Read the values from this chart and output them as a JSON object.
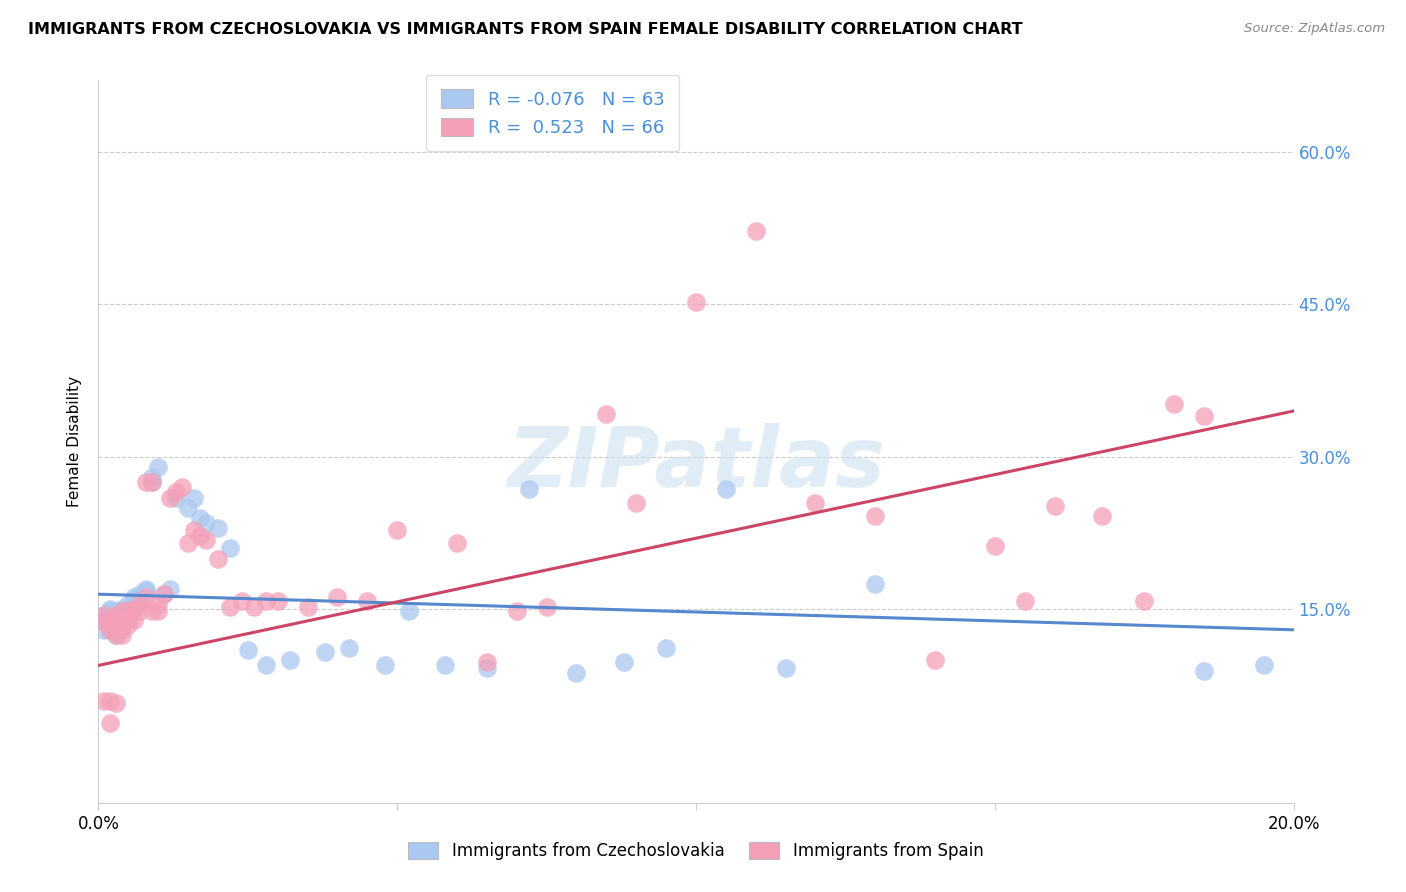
{
  "title": "IMMIGRANTS FROM CZECHOSLOVAKIA VS IMMIGRANTS FROM SPAIN FEMALE DISABILITY CORRELATION CHART",
  "source": "Source: ZipAtlas.com",
  "ylabel": "Female Disability",
  "xlim": [
    0.0,
    0.2
  ],
  "ylim": [
    -0.04,
    0.67
  ],
  "yticks": [
    0.15,
    0.3,
    0.45,
    0.6
  ],
  "ytick_labels": [
    "15.0%",
    "30.0%",
    "45.0%",
    "60.0%"
  ],
  "xticks": [
    0.0,
    0.05,
    0.1,
    0.15,
    0.2
  ],
  "xtick_labels": [
    "0.0%",
    "",
    "",
    "",
    "20.0%"
  ],
  "legend_label1": "Immigrants from Czechoslovakia",
  "legend_label2": "Immigrants from Spain",
  "R1": -0.076,
  "N1": 63,
  "R2": 0.523,
  "N2": 66,
  "color1": "#aac8f0",
  "color2": "#f4a0b8",
  "line_color1": "#5588cc",
  "line_color2": "#cc4466",
  "watermark": "ZIPatlas",
  "blue_scatter_x": [
    0.001,
    0.001,
    0.001,
    0.002,
    0.002,
    0.002,
    0.002,
    0.002,
    0.002,
    0.003,
    0.003,
    0.003,
    0.003,
    0.003,
    0.003,
    0.003,
    0.003,
    0.004,
    0.004,
    0.004,
    0.004,
    0.004,
    0.004,
    0.005,
    0.005,
    0.005,
    0.006,
    0.006,
    0.006,
    0.007,
    0.007,
    0.008,
    0.008,
    0.009,
    0.009,
    0.01,
    0.011,
    0.012,
    0.013,
    0.015,
    0.016,
    0.017,
    0.018,
    0.02,
    0.022,
    0.025,
    0.028,
    0.032,
    0.038,
    0.042,
    0.048,
    0.052,
    0.058,
    0.065,
    0.072,
    0.08,
    0.088,
    0.095,
    0.105,
    0.115,
    0.13,
    0.185,
    0.195
  ],
  "blue_scatter_y": [
    0.145,
    0.14,
    0.13,
    0.15,
    0.148,
    0.145,
    0.143,
    0.135,
    0.13,
    0.148,
    0.145,
    0.142,
    0.14,
    0.135,
    0.13,
    0.128,
    0.125,
    0.145,
    0.142,
    0.14,
    0.138,
    0.135,
    0.15,
    0.155,
    0.148,
    0.14,
    0.162,
    0.158,
    0.152,
    0.165,
    0.16,
    0.17,
    0.168,
    0.28,
    0.275,
    0.29,
    0.165,
    0.17,
    0.26,
    0.25,
    0.26,
    0.24,
    0.235,
    0.23,
    0.21,
    0.11,
    0.095,
    0.1,
    0.108,
    0.112,
    0.095,
    0.148,
    0.095,
    0.092,
    0.268,
    0.088,
    0.098,
    0.112,
    0.268,
    0.092,
    0.175,
    0.09,
    0.095
  ],
  "pink_scatter_x": [
    0.001,
    0.001,
    0.001,
    0.002,
    0.002,
    0.002,
    0.002,
    0.002,
    0.003,
    0.003,
    0.003,
    0.003,
    0.003,
    0.004,
    0.004,
    0.004,
    0.004,
    0.005,
    0.005,
    0.005,
    0.006,
    0.006,
    0.007,
    0.007,
    0.008,
    0.008,
    0.009,
    0.009,
    0.01,
    0.01,
    0.011,
    0.012,
    0.013,
    0.014,
    0.015,
    0.016,
    0.017,
    0.018,
    0.02,
    0.022,
    0.024,
    0.026,
    0.028,
    0.03,
    0.035,
    0.04,
    0.045,
    0.05,
    0.06,
    0.065,
    0.07,
    0.075,
    0.085,
    0.09,
    0.1,
    0.11,
    0.12,
    0.13,
    0.14,
    0.15,
    0.155,
    0.16,
    0.168,
    0.175,
    0.18,
    0.185
  ],
  "pink_scatter_y": [
    0.145,
    0.138,
    0.06,
    0.14,
    0.138,
    0.13,
    0.06,
    0.038,
    0.145,
    0.138,
    0.13,
    0.125,
    0.058,
    0.148,
    0.14,
    0.13,
    0.125,
    0.148,
    0.14,
    0.135,
    0.15,
    0.14,
    0.155,
    0.148,
    0.162,
    0.275,
    0.148,
    0.275,
    0.155,
    0.148,
    0.165,
    0.26,
    0.265,
    0.27,
    0.215,
    0.228,
    0.222,
    0.218,
    0.2,
    0.152,
    0.158,
    0.152,
    0.158,
    0.158,
    0.152,
    0.162,
    0.158,
    0.228,
    0.215,
    0.098,
    0.148,
    0.152,
    0.342,
    0.255,
    0.452,
    0.522,
    0.255,
    0.242,
    0.1,
    0.212,
    0.158,
    0.252,
    0.242,
    0.158,
    0.352,
    0.34
  ]
}
